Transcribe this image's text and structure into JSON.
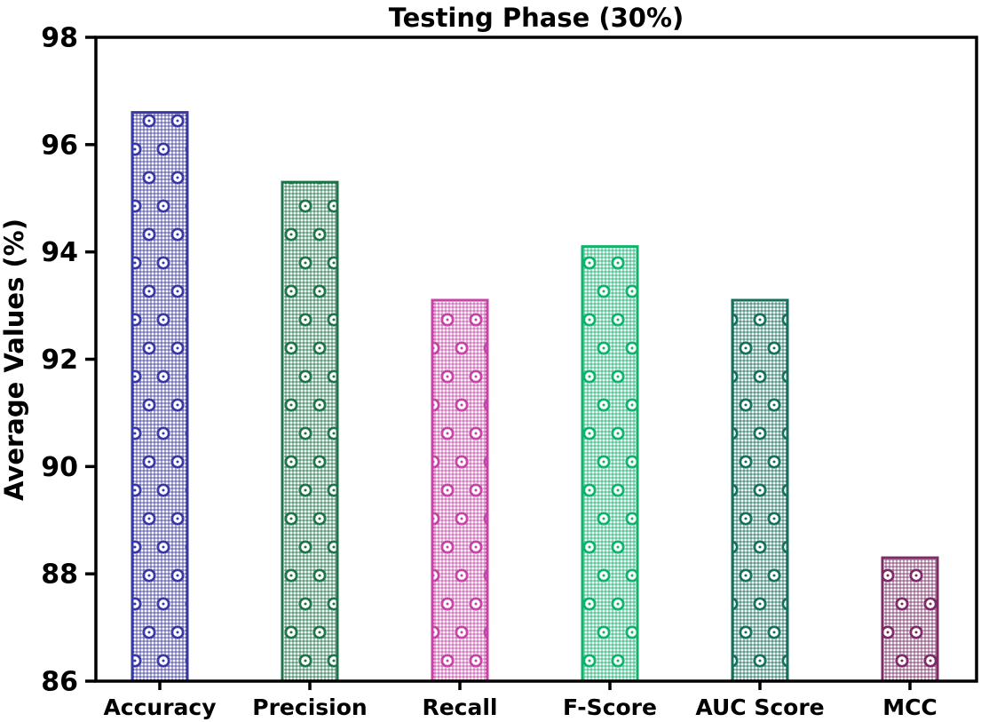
{
  "chart_data": {
    "type": "bar",
    "title": "Testing Phase (30%)",
    "ylabel": "Average Values (%)",
    "xlabel": "",
    "categories": [
      "Accuracy",
      "Precision",
      "Recall",
      "F-Score",
      "AUC Score",
      "MCC"
    ],
    "values": [
      96.6,
      95.3,
      93.1,
      94.1,
      93.1,
      88.3
    ],
    "ylim": [
      86,
      98
    ],
    "yticks": [
      86,
      88,
      90,
      92,
      94,
      96,
      98
    ],
    "grid": false,
    "legend_position": "none",
    "hatch_style": "dots-and-rings",
    "bar_colors": [
      "#3939A6",
      "#1F7348",
      "#C743A6",
      "#0EB26B",
      "#16705E",
      "#7C2B66"
    ],
    "axis_color": "#000000",
    "background_color": "#FFFFFF"
  }
}
